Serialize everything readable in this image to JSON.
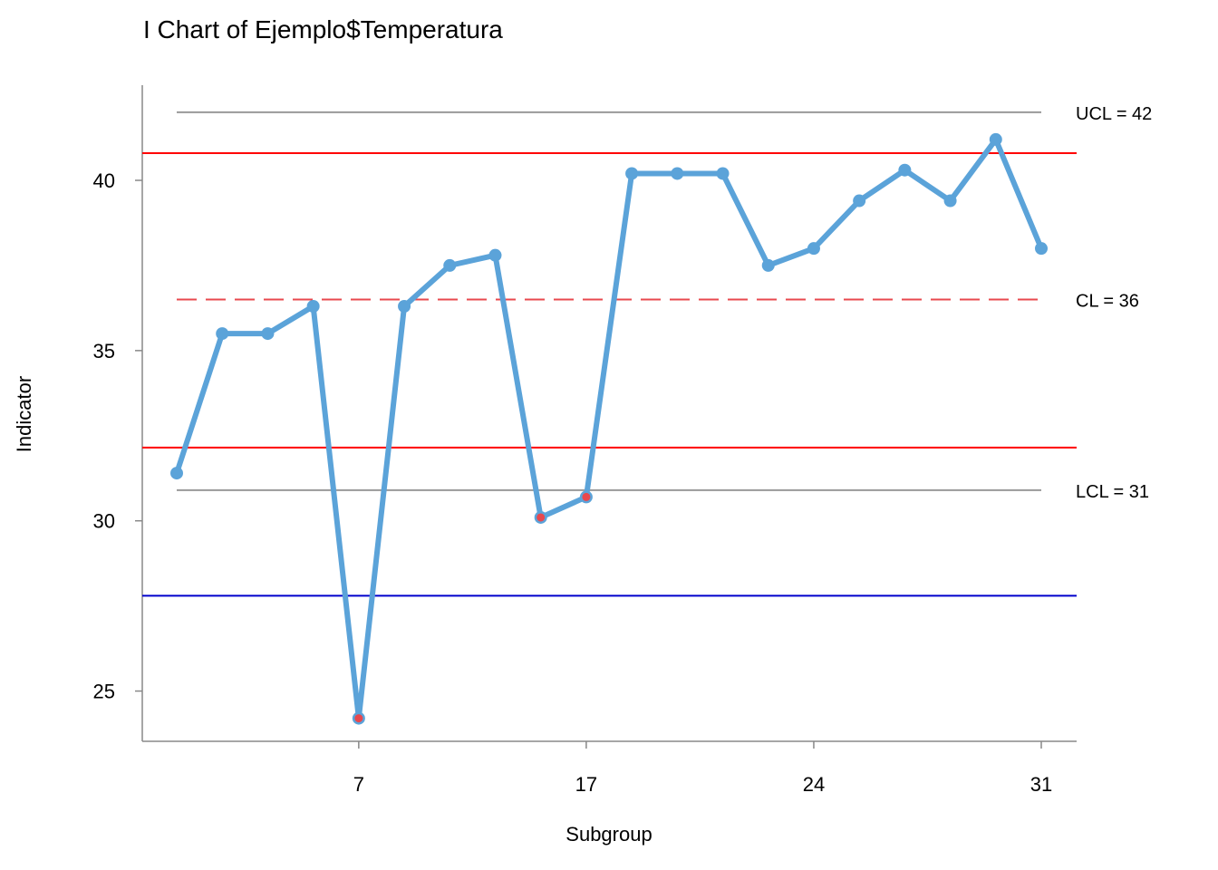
{
  "chart_data": {
    "type": "line",
    "title": "I Chart of Ejemplo$Temperatura",
    "xlabel": "Subgroup",
    "ylabel": "Indicator",
    "grid": false,
    "ylim": [
      23.5,
      43
    ],
    "y_ticks": [
      25,
      30,
      35,
      40
    ],
    "x_tick_labels": [
      "7",
      "17",
      "24",
      "31"
    ],
    "x_tick_positions": [
      5,
      10,
      15,
      20
    ],
    "x": [
      1,
      2,
      3,
      4,
      5,
      6,
      7,
      8,
      9,
      10,
      11,
      12,
      13,
      14,
      15,
      16,
      17,
      18,
      19,
      20
    ],
    "series": [
      {
        "values": [
          31.4,
          35.5,
          35.5,
          36.3,
          24.2,
          36.3,
          37.5,
          37.8,
          30.1,
          30.7,
          40.2,
          40.2,
          40.2,
          37.5,
          38.0,
          39.4,
          40.3,
          39.4,
          41.2,
          38.0
        ],
        "color": "#5ba3d9",
        "flagged_points": [
          5,
          9,
          10
        ],
        "flag_color": "#e8484e"
      }
    ],
    "control_limits": [
      {
        "label": "UCL = 42",
        "value": 42.0,
        "color": "#999999",
        "style": "solid"
      },
      {
        "label": "CL = 36",
        "value": 36.5,
        "color": "#e8484e",
        "style": "dashed"
      },
      {
        "label": "LCL = 31",
        "value": 30.9,
        "color": "#999999",
        "style": "solid"
      }
    ],
    "reference_lines": [
      {
        "value": 40.8,
        "color": "#ff0000"
      },
      {
        "value": 32.15,
        "color": "#ff0000"
      },
      {
        "value": 27.8,
        "color": "#0000cc"
      }
    ]
  }
}
